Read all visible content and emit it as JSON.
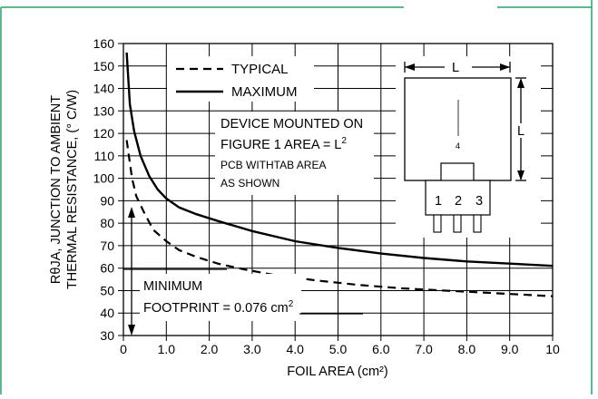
{
  "colors": {
    "frame": "#2e9e6a",
    "grid": "#000000",
    "curve": "#000000",
    "background": "#ffffff"
  },
  "chart_data": {
    "type": "line",
    "xlabel": "FOIL AREA (cm²)",
    "ylabel_line1": "RθJA, JUNCTION TO AMBIENT",
    "ylabel_line2": "THERMAL RESISTANCE, (° C/W)",
    "xlim": [
      0,
      10
    ],
    "ylim": [
      30,
      160
    ],
    "x_ticks": [
      0,
      1,
      2,
      3,
      4,
      5,
      6,
      7,
      8,
      9,
      10
    ],
    "x_tick_labels": [
      "0",
      "1.0",
      "2.0",
      "3.0",
      "4.0",
      "5.0",
      "6.0",
      "7.0",
      "8.0",
      "9.0",
      "10"
    ],
    "y_ticks": [
      30,
      40,
      50,
      60,
      70,
      80,
      90,
      100,
      110,
      120,
      130,
      140,
      150,
      160
    ],
    "y_tick_labels": [
      "30",
      "40",
      "50",
      "60",
      "70",
      "80",
      "90",
      "100",
      "110",
      "120",
      "130",
      "140",
      "150",
      "160"
    ],
    "grid": true,
    "series": [
      {
        "name": "TYPICAL",
        "style": "dashed",
        "x": [
          0.076,
          0.2,
          0.3,
          0.5,
          0.7,
          1.0,
          1.3,
          1.7,
          2.2,
          2.8,
          3.5,
          4.5,
          5.5,
          6.5,
          7.5,
          8.5,
          9.5,
          10.0
        ],
        "y": [
          117,
          100,
          92,
          84,
          77,
          72,
          68,
          65,
          62,
          59.5,
          57,
          54.5,
          52.5,
          51,
          50,
          49,
          48,
          47.5
        ]
      },
      {
        "name": "MAXIMUM",
        "style": "solid",
        "x": [
          0.076,
          0.15,
          0.25,
          0.4,
          0.6,
          0.8,
          1.0,
          1.3,
          1.7,
          2.2,
          3.0,
          4.0,
          5.0,
          6.0,
          7.0,
          8.0,
          9.0,
          10.0
        ],
        "y": [
          156,
          133,
          121,
          110,
          101,
          95,
          91,
          87,
          84,
          81,
          76.5,
          72,
          69,
          66.5,
          64.5,
          63,
          62,
          61
        ]
      }
    ],
    "annotations": {
      "device_line1": "DEVICE MOUNTED ON",
      "device_line2_prefix": "FIGURE 1 AREA = L",
      "device_line2_sup": "2",
      "device_line3": "PCB WITHTAB AREA",
      "device_line4": "AS SHOWN",
      "minimum_line1": "MINIMUM",
      "minimum_line2_prefix": "FOOTPRINT = 0.076 cm",
      "minimum_line2_sup": "2"
    },
    "package_labels": {
      "dimension": "L",
      "tab": "4",
      "pin1": "1",
      "pin2": "2",
      "pin3": "3"
    }
  }
}
